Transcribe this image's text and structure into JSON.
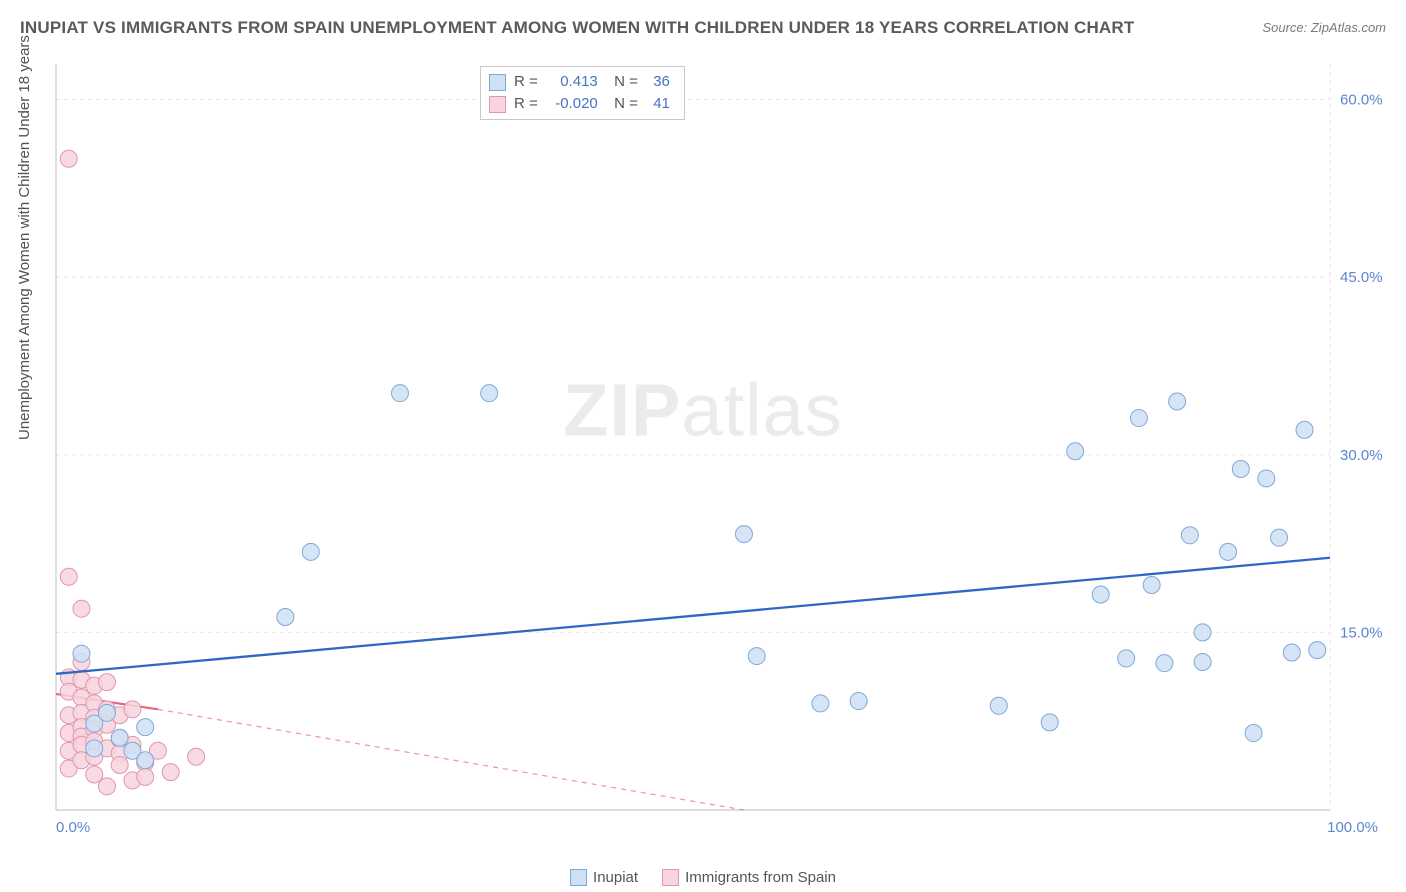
{
  "header": {
    "title": "INUPIAT VS IMMIGRANTS FROM SPAIN UNEMPLOYMENT AMONG WOMEN WITH CHILDREN UNDER 18 YEARS CORRELATION CHART",
    "source": "Source: ZipAtlas.com"
  },
  "watermark": {
    "bold": "ZIP",
    "rest": "atlas"
  },
  "chart": {
    "type": "scatter",
    "ylabel": "Unemployment Among Women with Children Under 18 years",
    "xlim": [
      0,
      100
    ],
    "ylim": [
      0,
      63
    ],
    "x_ticks": [
      {
        "v": 0,
        "label": "0.0%"
      },
      {
        "v": 100,
        "label": "100.0%"
      }
    ],
    "y_ticks": [
      {
        "v": 15,
        "label": "15.0%"
      },
      {
        "v": 30,
        "label": "30.0%"
      },
      {
        "v": 45,
        "label": "45.0%"
      },
      {
        "v": 60,
        "label": "60.0%"
      }
    ],
    "grid_color": "#e6e6e6",
    "axis_color": "#c9c9c9",
    "tick_label_color": "#5b86cd",
    "background_color": "#ffffff",
    "marker_radius": 8.5,
    "marker_stroke_width": 1,
    "series": [
      {
        "name": "Inupiat",
        "fill": "#cfe0f4",
        "stroke": "#7fa8d9",
        "R": "0.413",
        "N": "36",
        "trend": {
          "x1": 0,
          "y1": 11.5,
          "x2": 100,
          "y2": 21.3,
          "stroke": "#2f68c4",
          "width": 2.3,
          "dash": "",
          "dash_ext": ""
        },
        "points": [
          [
            2,
            13.2
          ],
          [
            3,
            7.3
          ],
          [
            3,
            5.2
          ],
          [
            4,
            8.2
          ],
          [
            5,
            6.1
          ],
          [
            6,
            5.0
          ],
          [
            7,
            7.0
          ],
          [
            7,
            4.2
          ],
          [
            18,
            16.3
          ],
          [
            20,
            21.8
          ],
          [
            27,
            35.2
          ],
          [
            34,
            35.2
          ],
          [
            54,
            23.3
          ],
          [
            55,
            13.0
          ],
          [
            60,
            9.0
          ],
          [
            63,
            9.2
          ],
          [
            74,
            8.8
          ],
          [
            78,
            7.4
          ],
          [
            80,
            30.3
          ],
          [
            82,
            18.2
          ],
          [
            84,
            12.8
          ],
          [
            85,
            33.1
          ],
          [
            86,
            19.0
          ],
          [
            87,
            12.4
          ],
          [
            88,
            34.5
          ],
          [
            89,
            23.2
          ],
          [
            90,
            15.0
          ],
          [
            90,
            12.5
          ],
          [
            92,
            21.8
          ],
          [
            93,
            28.8
          ],
          [
            94,
            6.5
          ],
          [
            95,
            28.0
          ],
          [
            96,
            23.0
          ],
          [
            97,
            13.3
          ],
          [
            98,
            32.1
          ],
          [
            99,
            13.5
          ]
        ]
      },
      {
        "name": "Immigrants from Spain",
        "fill": "#f7d4de",
        "stroke": "#e196ac",
        "R": "-0.020",
        "N": "41",
        "trend": {
          "x1": 0,
          "y1": 9.8,
          "x2": 8,
          "y2": 8.5,
          "stroke": "#e8657f",
          "width": 2.2,
          "dash": "",
          "ext_x2": 54,
          "ext_y2": 0,
          "dash_ext": "5,5"
        },
        "points": [
          [
            1,
            55.0
          ],
          [
            1,
            19.7
          ],
          [
            1,
            11.2
          ],
          [
            1,
            10.0
          ],
          [
            1,
            8.0
          ],
          [
            1,
            6.5
          ],
          [
            1,
            5.0
          ],
          [
            1,
            3.5
          ],
          [
            2,
            17.0
          ],
          [
            2,
            12.5
          ],
          [
            2,
            11.0
          ],
          [
            2,
            9.5
          ],
          [
            2,
            8.2
          ],
          [
            2,
            7.0
          ],
          [
            2,
            6.2
          ],
          [
            2,
            5.5
          ],
          [
            2,
            4.2
          ],
          [
            3,
            10.5
          ],
          [
            3,
            9.0
          ],
          [
            3,
            7.8
          ],
          [
            3,
            6.8
          ],
          [
            3,
            5.8
          ],
          [
            3,
            4.5
          ],
          [
            3,
            3.0
          ],
          [
            4,
            10.8
          ],
          [
            4,
            8.5
          ],
          [
            4,
            7.2
          ],
          [
            4,
            5.2
          ],
          [
            4,
            2.0
          ],
          [
            5,
            8.0
          ],
          [
            5,
            6.0
          ],
          [
            5,
            4.8
          ],
          [
            5,
            3.8
          ],
          [
            6,
            8.5
          ],
          [
            6,
            5.5
          ],
          [
            6,
            2.5
          ],
          [
            7,
            4.0
          ],
          [
            7,
            2.8
          ],
          [
            8,
            5.0
          ],
          [
            9,
            3.2
          ],
          [
            11,
            4.5
          ]
        ]
      }
    ],
    "bottom_legend": [
      {
        "label": "Inupiat",
        "fill": "#cfe0f4",
        "stroke": "#7fa8d9"
      },
      {
        "label": "Immigrants from Spain",
        "fill": "#f7d4de",
        "stroke": "#e196ac"
      }
    ]
  }
}
